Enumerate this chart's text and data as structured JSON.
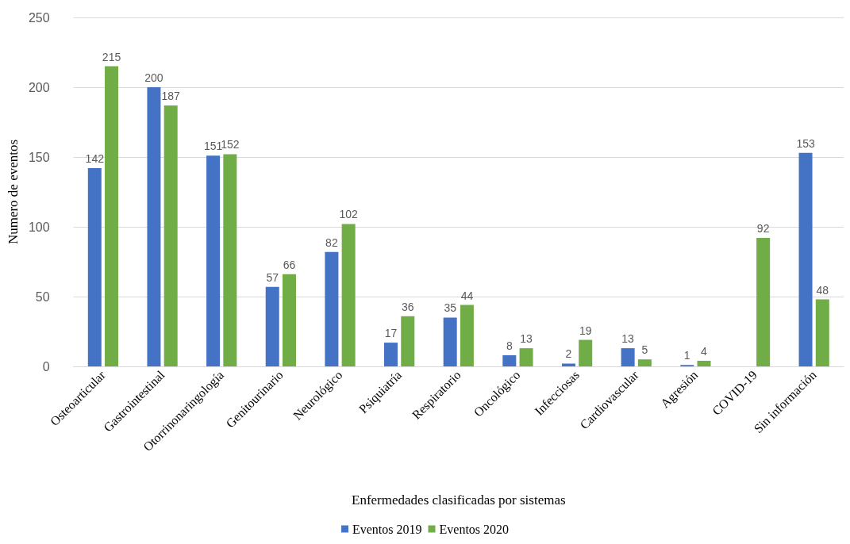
{
  "chart_data": {
    "type": "bar",
    "xlabel": "Enfermedades clasificadas por sistemas",
    "ylabel": "Numero de eventos",
    "categories": [
      "Osteoarticular",
      "Gastrointestinal",
      "Otorrinonaringología",
      "Genitourinario",
      "Neurológico",
      "Psiquiatría",
      "Respiratorio",
      "Oncológico",
      "Infecciosas",
      "Cardiovascular",
      "Agresión",
      "COVID-19",
      "Sin información"
    ],
    "series": [
      {
        "name": "Eventos 2019",
        "color": "#4472c4",
        "values": [
          142,
          200,
          151,
          57,
          82,
          17,
          35,
          8,
          2,
          13,
          1,
          null,
          153
        ]
      },
      {
        "name": "Eventos 2020",
        "color": "#70ad47",
        "values": [
          215,
          187,
          152,
          66,
          102,
          36,
          44,
          13,
          19,
          5,
          4,
          92,
          48
        ]
      }
    ],
    "ylim": [
      0,
      250
    ],
    "yticks": [
      0,
      50,
      100,
      150,
      200,
      250
    ],
    "grid": "y",
    "legend": "bottom",
    "data_labels": true
  }
}
